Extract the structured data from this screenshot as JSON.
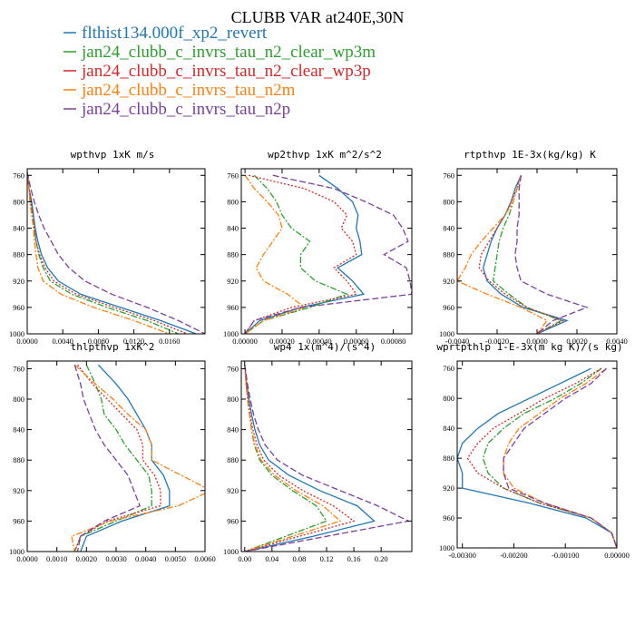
{
  "figure_title": "CLUBB VAR at240E,30N",
  "legend": [
    {
      "name": "flthist134.000f_xp2_revert",
      "color": "#1f77b4",
      "dash": ""
    },
    {
      "name": "jan24_clubb_c_invrs_tau_n2_clear_wp3m",
      "color": "#2ca02c",
      "dash": "7,2,2,2"
    },
    {
      "name": "jan24_clubb_c_invrs_tau_n2_clear_wp3p",
      "color": "#d62728",
      "dash": "2,2"
    },
    {
      "name": "jan24_clubb_c_invrs_tau_n2m",
      "color": "#ff7f0e",
      "dash": "7,2,2,2"
    },
    {
      "name": "jan24_clubb_c_invrs_tau_n2p",
      "color": "#7b3f9e",
      "dash": "7,3"
    }
  ],
  "chart_data": [
    {
      "type": "line",
      "title": "wpthvp 1xK m/s",
      "xlim": [
        0.0,
        0.02
      ],
      "ylim": [
        1000,
        750
      ],
      "xticks": [
        "0.0000",
        "0.0040",
        "0.0080",
        "0.0120",
        "0.0160"
      ],
      "xtick_values": [
        0.0,
        0.004,
        0.008,
        0.012,
        0.016
      ],
      "yticks": [
        "760",
        "800",
        "840",
        "880",
        "920",
        "960",
        "1000"
      ],
      "ytick_values": [
        760,
        800,
        840,
        880,
        920,
        960,
        1000
      ],
      "y": [
        755,
        780,
        800,
        820,
        840,
        860,
        880,
        900,
        920,
        940,
        960,
        980,
        1000
      ],
      "series": [
        {
          "values": [
            0.0,
            0.0002,
            0.0005,
            0.0007,
            0.0009,
            0.0012,
            0.0016,
            0.0023,
            0.0035,
            0.006,
            0.0105,
            0.015,
            0.019
          ]
        },
        {
          "values": [
            0.0,
            0.0002,
            0.0004,
            0.0006,
            0.0008,
            0.001,
            0.0013,
            0.0018,
            0.0026,
            0.005,
            0.009,
            0.0135,
            0.017
          ]
        },
        {
          "values": [
            0.0,
            0.0002,
            0.0004,
            0.0006,
            0.0008,
            0.001,
            0.0014,
            0.002,
            0.003,
            0.0055,
            0.0098,
            0.0143,
            0.018
          ]
        },
        {
          "values": [
            0.0,
            0.0002,
            0.0003,
            0.0005,
            0.0007,
            0.0008,
            0.001,
            0.0012,
            0.0018,
            0.0038,
            0.0075,
            0.012,
            0.016
          ]
        },
        {
          "values": [
            0.0,
            0.0004,
            0.0008,
            0.0013,
            0.0019,
            0.0027,
            0.0035,
            0.0047,
            0.0065,
            0.0095,
            0.0135,
            0.017,
            0.02
          ]
        }
      ]
    },
    {
      "type": "line",
      "title": "wp2thvp 1xK m^2/s^2",
      "xlim": [
        -2e-05,
        0.0009
      ],
      "ylim": [
        1000,
        750
      ],
      "xticks": [
        "0.00000",
        "0.00020",
        "0.00040",
        "0.00060",
        "0.00080"
      ],
      "xtick_values": [
        0.0,
        0.0002,
        0.0004,
        0.0006,
        0.0008
      ],
      "yticks": [
        "760",
        "800",
        "840",
        "880",
        "920",
        "960",
        "1000"
      ],
      "ytick_values": [
        760,
        800,
        840,
        880,
        920,
        960,
        1000
      ],
      "y": [
        760,
        780,
        800,
        820,
        840,
        860,
        880,
        900,
        920,
        940,
        960,
        980,
        1000
      ],
      "series": [
        {
          "values": [
            0.0004,
            0.0005,
            0.00058,
            0.00061,
            0.0006,
            0.00062,
            0.00063,
            0.0005,
            0.00058,
            0.00064,
            0.0003,
            8e-05,
            0.0
          ]
        },
        {
          "values": [
            5e-05,
            0.00012,
            0.00017,
            0.0002,
            0.00025,
            0.00035,
            0.0003,
            0.0003,
            0.00038,
            0.00055,
            0.00035,
            0.0001,
            0.0
          ]
        },
        {
          "values": [
            2e-05,
            0.00032,
            0.00048,
            0.00055,
            0.00052,
            0.00058,
            0.0006,
            0.00048,
            0.00055,
            0.0006,
            0.00025,
            5e-05,
            0.0
          ]
        },
        {
          "values": [
            0.0,
            5e-05,
            0.00012,
            0.00018,
            0.0002,
            0.00015,
            0.0001,
            6e-05,
            0.0001,
            0.00023,
            0.00032,
            0.0001,
            0.0
          ]
        },
        {
          "values": [
            0.00015,
            0.00048,
            0.00065,
            0.0008,
            0.00085,
            0.00088,
            0.00075,
            0.00087,
            0.00089,
            0.0009,
            0.0003,
            5e-05,
            0.0
          ]
        }
      ]
    },
    {
      "type": "line",
      "title": "rtpthvp 1E-3x(kg/kg) K",
      "xlim": [
        -0.004,
        0.004
      ],
      "ylim": [
        1000,
        750
      ],
      "xticks": [
        "-0.0040",
        "-0.0020",
        "0.0000",
        "0.0020",
        "0.0040"
      ],
      "xtick_values": [
        -0.004,
        -0.002,
        0.0,
        0.002,
        0.004
      ],
      "yticks": [
        "760",
        "800",
        "840",
        "880",
        "920",
        "960",
        "1000"
      ],
      "ytick_values": [
        760,
        800,
        840,
        880,
        920,
        960,
        1000
      ],
      "y": [
        760,
        780,
        800,
        820,
        840,
        860,
        880,
        900,
        920,
        940,
        960,
        980,
        1000
      ],
      "series": [
        {
          "values": [
            -0.0008,
            -0.0011,
            -0.0013,
            -0.0016,
            -0.002,
            -0.0023,
            -0.0025,
            -0.0027,
            -0.0025,
            -0.0018,
            -0.0007,
            0.0015,
            0.0
          ]
        },
        {
          "values": [
            -0.0008,
            -0.001,
            -0.0012,
            -0.0014,
            -0.0017,
            -0.0019,
            -0.002,
            -0.0021,
            -0.0022,
            -0.0014,
            -0.0005,
            0.0012,
            0.0
          ]
        },
        {
          "values": [
            -0.0008,
            -0.001,
            -0.0013,
            -0.0016,
            -0.002,
            -0.0024,
            -0.0028,
            -0.0029,
            -0.0024,
            -0.0016,
            -0.0005,
            0.0013,
            0.0
          ]
        },
        {
          "values": [
            -0.0008,
            -0.001,
            -0.0012,
            -0.0016,
            -0.0022,
            -0.0028,
            -0.0033,
            -0.0036,
            -0.004,
            -0.0025,
            -0.0008,
            0.0005,
            0.0
          ]
        },
        {
          "values": [
            -0.0008,
            -0.0009,
            -0.0009,
            -0.0009,
            -0.001,
            -0.001,
            -0.0011,
            -0.001,
            -0.0008,
            0.0005,
            0.0025,
            0.0008,
            0.0
          ]
        }
      ]
    },
    {
      "type": "line",
      "title": "thlpthvp 1xK^2",
      "xlim": [
        0.0,
        0.006
      ],
      "ylim": [
        1000,
        750
      ],
      "xticks": [
        "0.0000",
        "0.0010",
        "0.0020",
        "0.0030",
        "0.0040",
        "0.0050",
        "0.0060"
      ],
      "xtick_values": [
        0.0,
        0.001,
        0.002,
        0.003,
        0.004,
        0.005,
        0.006
      ],
      "yticks": [
        "760",
        "800",
        "840",
        "880",
        "920",
        "960",
        "1000"
      ],
      "ytick_values": [
        760,
        800,
        840,
        880,
        920,
        960,
        1000
      ],
      "y": [
        755,
        780,
        800,
        820,
        840,
        860,
        880,
        900,
        920,
        940,
        960,
        980,
        1000
      ],
      "series": [
        {
          "values": [
            0.0024,
            0.003,
            0.0034,
            0.0037,
            0.004,
            0.0042,
            0.0042,
            0.0046,
            0.0048,
            0.0048,
            0.0032,
            0.002,
            0.0018
          ]
        },
        {
          "values": [
            0.002,
            0.0023,
            0.0025,
            0.0026,
            0.003,
            0.0033,
            0.0037,
            0.0041,
            0.0042,
            0.0042,
            0.003,
            0.0018,
            0.0016
          ]
        },
        {
          "values": [
            0.0017,
            0.0022,
            0.0027,
            0.0032,
            0.0037,
            0.0039,
            0.0039,
            0.0043,
            0.0045,
            0.0045,
            0.0027,
            0.0018,
            0.0016
          ]
        },
        {
          "values": [
            0.0016,
            0.0023,
            0.0029,
            0.0034,
            0.004,
            0.0042,
            0.0042,
            0.0052,
            0.0062,
            0.0051,
            0.0028,
            0.0015,
            0.0016
          ]
        },
        {
          "values": [
            0.0016,
            0.0018,
            0.0019,
            0.0021,
            0.0023,
            0.0026,
            0.003,
            0.0034,
            0.0036,
            0.0038,
            0.0026,
            0.0018,
            0.0017
          ]
        }
      ]
    },
    {
      "type": "line",
      "title": "wp4 1x(m^4)/(s^4)",
      "xlim": [
        -0.005,
        0.245
      ],
      "ylim": [
        1000,
        750
      ],
      "xticks": [
        "0.00",
        "0.04",
        "0.08",
        "0.12",
        "0.16",
        "0.20"
      ],
      "xtick_values": [
        0.0,
        0.04,
        0.08,
        0.12,
        0.16,
        0.2
      ],
      "yticks": [
        "760",
        "800",
        "840",
        "880",
        "920",
        "960",
        "1000"
      ],
      "ytick_values": [
        760,
        800,
        840,
        880,
        920,
        960,
        1000
      ],
      "y": [
        755,
        780,
        800,
        820,
        840,
        860,
        880,
        900,
        920,
        940,
        960,
        980,
        1000
      ],
      "series": [
        {
          "values": [
            0.0,
            0.003,
            0.006,
            0.01,
            0.015,
            0.022,
            0.035,
            0.065,
            0.11,
            0.165,
            0.19,
            0.1,
            0.0
          ]
        },
        {
          "values": [
            0.0,
            0.002,
            0.004,
            0.007,
            0.01,
            0.014,
            0.022,
            0.04,
            0.07,
            0.105,
            0.12,
            0.06,
            0.0
          ]
        },
        {
          "values": [
            0.0,
            0.002,
            0.005,
            0.008,
            0.012,
            0.018,
            0.028,
            0.05,
            0.085,
            0.13,
            0.16,
            0.08,
            0.0
          ]
        },
        {
          "values": [
            0.0,
            0.002,
            0.004,
            0.007,
            0.01,
            0.015,
            0.024,
            0.044,
            0.075,
            0.115,
            0.14,
            0.07,
            0.0
          ]
        },
        {
          "values": [
            0.0,
            0.004,
            0.008,
            0.013,
            0.02,
            0.03,
            0.048,
            0.085,
            0.14,
            0.195,
            0.24,
            0.12,
            0.0
          ]
        }
      ]
    },
    {
      "type": "line",
      "title": "wprtpthlp 1-E-3x(m kg K)/(s kg)",
      "xlim": [
        -0.0031,
        0.0
      ],
      "ylim": [
        1000,
        750
      ],
      "xticks": [
        "-0.00300",
        "-0.00200",
        "-0.00100",
        "0.00000"
      ],
      "xtick_values": [
        -0.003,
        -0.002,
        -0.001,
        0.0
      ],
      "yticks": [
        "760",
        "800",
        "840",
        "880",
        "920",
        "960",
        "1000"
      ],
      "ytick_values": [
        760,
        800,
        840,
        880,
        920,
        960,
        1000
      ],
      "y": [
        760,
        780,
        800,
        820,
        840,
        860,
        880,
        900,
        920,
        940,
        960,
        980,
        1000
      ],
      "series": [
        {
          "values": [
            -0.0005,
            -0.0011,
            -0.0017,
            -0.0023,
            -0.0027,
            -0.003,
            -0.0031,
            -0.003,
            -0.003,
            -0.0017,
            -0.0006,
            -0.0001,
            0.0
          ]
        },
        {
          "values": [
            -0.0003,
            -0.0007,
            -0.0012,
            -0.0018,
            -0.0022,
            -0.0025,
            -0.0026,
            -0.0025,
            -0.0022,
            -0.0015,
            -0.0005,
            -0.0001,
            0.0
          ]
        },
        {
          "values": [
            -0.0003,
            -0.0008,
            -0.0014,
            -0.0019,
            -0.0024,
            -0.0027,
            -0.0029,
            -0.0027,
            -0.0022,
            -0.0015,
            -0.0005,
            -0.0001,
            0.0
          ]
        },
        {
          "values": [
            -0.0002,
            -0.0006,
            -0.0011,
            -0.0015,
            -0.0019,
            -0.0021,
            -0.0022,
            -0.0022,
            -0.002,
            -0.0014,
            -0.0005,
            -0.0001,
            0.0
          ]
        },
        {
          "values": [
            -0.0002,
            -0.0005,
            -0.001,
            -0.0014,
            -0.0018,
            -0.002,
            -0.0022,
            -0.0022,
            -0.0021,
            -0.0014,
            -0.0005,
            -0.0001,
            0.0
          ]
        }
      ]
    }
  ]
}
